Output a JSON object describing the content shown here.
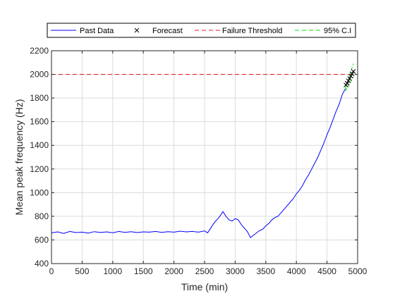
{
  "chart_data": {
    "type": "line",
    "xlabel": "Time (min)",
    "ylabel": "Mean peak frequency (Hz)",
    "xlim": [
      0,
      5000
    ],
    "ylim": [
      400,
      2200
    ],
    "xticks": [
      "0",
      "500",
      "1000",
      "1500",
      "2000",
      "2500",
      "3000",
      "3500",
      "4000",
      "4500",
      "5000"
    ],
    "yticks": [
      "400",
      "600",
      "800",
      "1000",
      "1200",
      "1400",
      "1600",
      "1800",
      "2000",
      "2200"
    ],
    "grid": true,
    "legend_placement": "top, horizontal, outside plot area",
    "series": [
      {
        "name": "Past Data",
        "style": "solid line",
        "color": "#0000ff",
        "points": [
          [
            0,
            660
          ],
          [
            100,
            668
          ],
          [
            200,
            655
          ],
          [
            300,
            672
          ],
          [
            400,
            662
          ],
          [
            500,
            666
          ],
          [
            600,
            658
          ],
          [
            700,
            670
          ],
          [
            800,
            663
          ],
          [
            900,
            668
          ],
          [
            1000,
            660
          ],
          [
            1100,
            672
          ],
          [
            1200,
            664
          ],
          [
            1300,
            670
          ],
          [
            1400,
            662
          ],
          [
            1500,
            668
          ],
          [
            1600,
            666
          ],
          [
            1700,
            672
          ],
          [
            1800,
            664
          ],
          [
            1900,
            670
          ],
          [
            2000,
            666
          ],
          [
            2100,
            674
          ],
          [
            2200,
            668
          ],
          [
            2300,
            672
          ],
          [
            2400,
            666
          ],
          [
            2500,
            676
          ],
          [
            2550,
            660
          ],
          [
            2600,
            700
          ],
          [
            2650,
            740
          ],
          [
            2700,
            770
          ],
          [
            2750,
            800
          ],
          [
            2800,
            840
          ],
          [
            2850,
            800
          ],
          [
            2900,
            770
          ],
          [
            2950,
            760
          ],
          [
            3000,
            780
          ],
          [
            3050,
            770
          ],
          [
            3100,
            730
          ],
          [
            3150,
            700
          ],
          [
            3200,
            670
          ],
          [
            3250,
            620
          ],
          [
            3300,
            640
          ],
          [
            3350,
            660
          ],
          [
            3400,
            680
          ],
          [
            3450,
            690
          ],
          [
            3500,
            720
          ],
          [
            3550,
            740
          ],
          [
            3600,
            770
          ],
          [
            3650,
            790
          ],
          [
            3700,
            800
          ],
          [
            3750,
            830
          ],
          [
            3800,
            860
          ],
          [
            3850,
            890
          ],
          [
            3900,
            920
          ],
          [
            3950,
            950
          ],
          [
            4000,
            990
          ],
          [
            4050,
            1020
          ],
          [
            4100,
            1060
          ],
          [
            4150,
            1110
          ],
          [
            4200,
            1150
          ],
          [
            4250,
            1200
          ],
          [
            4300,
            1250
          ],
          [
            4350,
            1300
          ],
          [
            4400,
            1360
          ],
          [
            4450,
            1420
          ],
          [
            4500,
            1490
          ],
          [
            4550,
            1550
          ],
          [
            4600,
            1620
          ],
          [
            4650,
            1690
          ],
          [
            4700,
            1750
          ],
          [
            4750,
            1830
          ],
          [
            4800,
            1880
          ]
        ]
      },
      {
        "name": "Forecast",
        "style": "x markers",
        "color": "#000000",
        "points": [
          [
            4810,
            1910
          ],
          [
            4830,
            1925
          ],
          [
            4850,
            1945
          ],
          [
            4870,
            1965
          ],
          [
            4890,
            1985
          ],
          [
            4910,
            2005
          ],
          [
            4930,
            2025
          ]
        ]
      },
      {
        "name": "Failure Threshold",
        "style": "dashed line",
        "color": "#e41a1c",
        "points": [
          [
            0,
            2000
          ],
          [
            4900,
            2000
          ]
        ]
      },
      {
        "name": "95% C.I",
        "style": "dashed line",
        "color": "#00e000",
        "bands": [
          [
            [
              4800,
              1880
            ],
            [
              4930,
              2090
            ]
          ],
          [
            [
              4800,
              1860
            ],
            [
              4930,
              1980
            ]
          ]
        ]
      }
    ],
    "colors": {
      "plot_background": "#ffffff",
      "grid": "#dcdcdc",
      "axes": "#262626"
    }
  }
}
